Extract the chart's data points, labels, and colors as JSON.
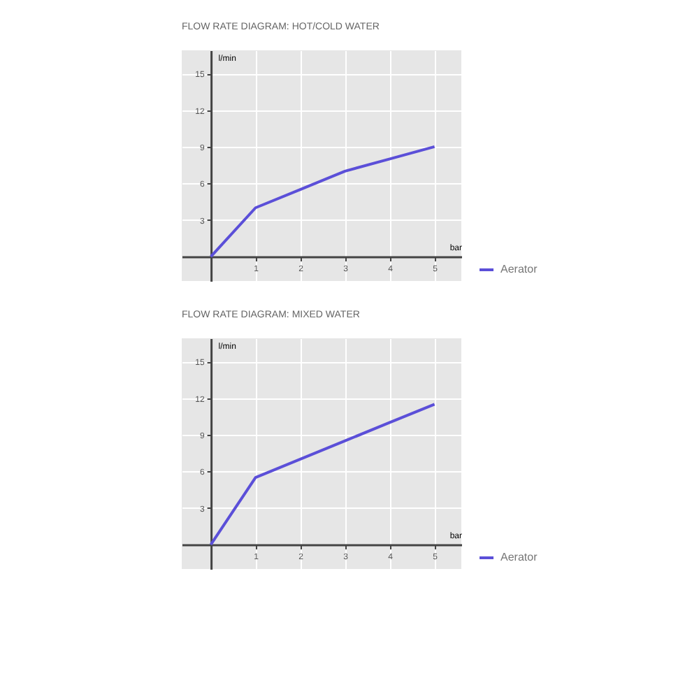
{
  "chart_data": [
    {
      "type": "line",
      "title": "FLOW RATE DIAGRAM: HOT/COLD WATER",
      "xlabel": "bar",
      "ylabel": "l/min",
      "x": [
        0,
        1,
        2,
        3,
        4,
        5
      ],
      "series": [
        {
          "name": "Aerator",
          "color": "#5b4fd8",
          "values": [
            0,
            4,
            5.5,
            7,
            8,
            9
          ]
        }
      ],
      "xlim": [
        -0.65,
        5.6
      ],
      "ylim": [
        -2,
        16.9
      ],
      "xticks": [
        1,
        2,
        3,
        4,
        5
      ],
      "yticks": [
        3,
        6,
        9,
        12,
        15
      ],
      "grid": true,
      "legend": "bottom right",
      "marker": "none",
      "line_style": "solid"
    },
    {
      "type": "line",
      "title": "FLOW RATE DIAGRAM: MIXED WATER",
      "xlabel": "bar",
      "ylabel": "l/min",
      "x": [
        0,
        1,
        2,
        3,
        4,
        5
      ],
      "series": [
        {
          "name": "Aerator",
          "color": "#5b4fd8",
          "values": [
            0,
            5.5,
            7,
            8.5,
            10,
            11.5
          ]
        }
      ],
      "xlim": [
        -0.65,
        5.6
      ],
      "ylim": [
        -2,
        16.9
      ],
      "xticks": [
        1,
        2,
        3,
        4,
        5
      ],
      "yticks": [
        3,
        6,
        9,
        12,
        15
      ],
      "grid": true,
      "legend": "bottom right",
      "marker": "none",
      "line_style": "solid"
    }
  ]
}
